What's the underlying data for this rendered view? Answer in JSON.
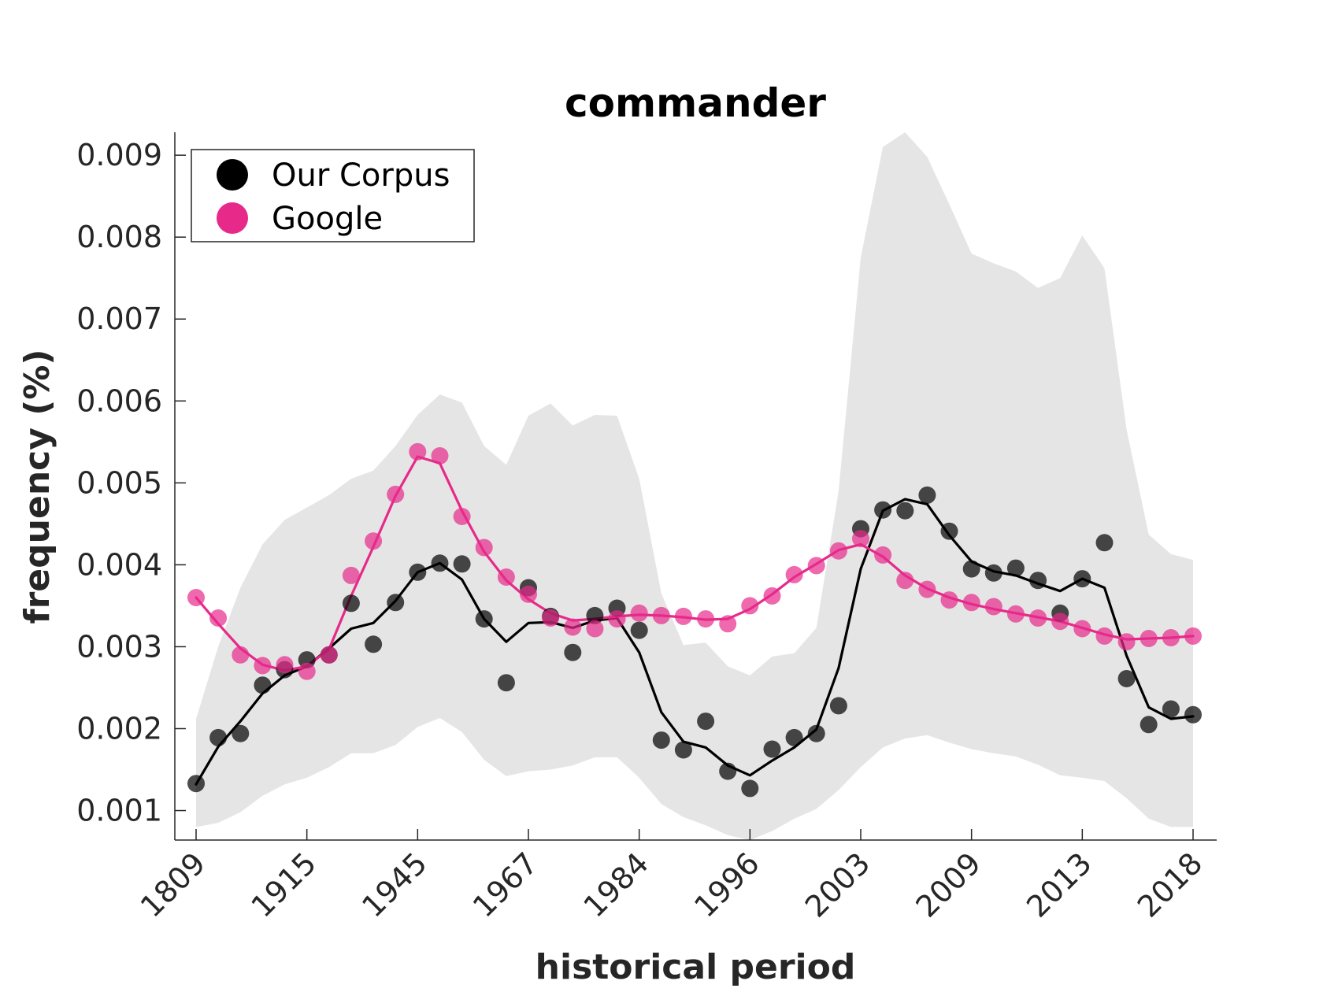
{
  "chart_data": {
    "type": "scatter",
    "title": "commander",
    "xlabel": "historical period",
    "ylabel": "frequency (%)",
    "ylim": [
      0.00064,
      0.00928
    ],
    "yticks": [
      0.001,
      0.002,
      0.003,
      0.004,
      0.005,
      0.006,
      0.007,
      0.008,
      0.009
    ],
    "ytick_labels": [
      "0.001",
      "0.002",
      "0.003",
      "0.004",
      "0.005",
      "0.006",
      "0.007",
      "0.008",
      "0.009"
    ],
    "xtick_labels": [
      "1809",
      "1915",
      "1945",
      "1967",
      "1984",
      "1996",
      "2003",
      "2009",
      "2013",
      "2018"
    ],
    "xtick_index": [
      0,
      5,
      10,
      15,
      20,
      25,
      30,
      35,
      40,
      45
    ],
    "n_periods": 46,
    "grid": false,
    "legend_position": "top-left",
    "series": [
      {
        "name": "Our Corpus",
        "color": "#000000",
        "points": [
          0.00133,
          0.00189,
          0.00194,
          0.00253,
          0.00272,
          0.00284,
          0.0029,
          0.00353,
          0.00303,
          0.00354,
          0.00391,
          0.00402,
          0.00401,
          0.00334,
          0.00256,
          0.00372,
          0.00337,
          0.00293,
          0.00338,
          0.00347,
          0.0032,
          0.00186,
          0.00174,
          0.00209,
          0.00148,
          0.00127,
          0.00175,
          0.00189,
          0.00194,
          0.00228,
          0.00444,
          0.00467,
          0.00466,
          0.00485,
          0.00441,
          0.00395,
          0.0039,
          0.00396,
          0.00381,
          0.00341,
          0.00383,
          0.00427,
          0.00261,
          0.00205,
          0.00224,
          0.00217
        ],
        "trend": [
          0.00132,
          0.00178,
          0.00209,
          0.00243,
          0.00265,
          0.00276,
          0.00298,
          0.00322,
          0.00329,
          0.00356,
          0.00391,
          0.00402,
          0.00382,
          0.00334,
          0.00306,
          0.00329,
          0.0033,
          0.00323,
          0.00332,
          0.00335,
          0.00293,
          0.0022,
          0.00184,
          0.00177,
          0.00155,
          0.00143,
          0.00161,
          0.00177,
          0.00199,
          0.00274,
          0.00395,
          0.00466,
          0.0048,
          0.00474,
          0.00436,
          0.00404,
          0.00392,
          0.00387,
          0.00377,
          0.00368,
          0.00383,
          0.00372,
          0.00289,
          0.00226,
          0.00212,
          0.00215
        ]
      },
      {
        "name": "Google",
        "color": "#e7298a",
        "points": [
          0.0036,
          0.00335,
          0.0029,
          0.00277,
          0.00278,
          0.0027,
          0.0029,
          0.00387,
          0.00429,
          0.00486,
          0.00538,
          0.00533,
          0.00459,
          0.00421,
          0.00385,
          0.00364,
          0.00335,
          0.00324,
          0.00322,
          0.00334,
          0.00341,
          0.00338,
          0.00337,
          0.00334,
          0.00328,
          0.0035,
          0.00362,
          0.00388,
          0.00399,
          0.00417,
          0.00432,
          0.00412,
          0.00381,
          0.0037,
          0.00357,
          0.00354,
          0.00349,
          0.0034,
          0.00335,
          0.00331,
          0.00322,
          0.00313,
          0.00306,
          0.0031,
          0.00311,
          0.00313
        ],
        "trend": [
          0.0036,
          0.00328,
          0.00298,
          0.00278,
          0.00271,
          0.00276,
          0.00297,
          0.00362,
          0.00422,
          0.00484,
          0.00532,
          0.00524,
          0.00466,
          0.00416,
          0.00381,
          0.00358,
          0.00341,
          0.00332,
          0.00334,
          0.00337,
          0.00339,
          0.00338,
          0.00336,
          0.00333,
          0.00334,
          0.00346,
          0.00364,
          0.00385,
          0.00401,
          0.00418,
          0.00425,
          0.0041,
          0.00387,
          0.00371,
          0.0036,
          0.00352,
          0.00346,
          0.00341,
          0.00336,
          0.00331,
          0.00323,
          0.00315,
          0.00309,
          0.0031,
          0.00311,
          0.00313
        ]
      }
    ],
    "band": {
      "color": "#e5e5e5",
      "upper": [
        0.00212,
        0.003,
        0.00372,
        0.00425,
        0.00455,
        0.0047,
        0.00485,
        0.00505,
        0.00515,
        0.00545,
        0.00583,
        0.00608,
        0.00598,
        0.00545,
        0.00522,
        0.00582,
        0.00597,
        0.0057,
        0.00583,
        0.00582,
        0.00505,
        0.00365,
        0.00302,
        0.00305,
        0.00276,
        0.00265,
        0.00288,
        0.00292,
        0.00323,
        0.0049,
        0.00775,
        0.0091,
        0.00928,
        0.00898,
        0.0084,
        0.0078,
        0.00768,
        0.00758,
        0.00738,
        0.0075,
        0.00802,
        0.00762,
        0.00565,
        0.00437,
        0.00413,
        0.00406
      ],
      "lower": [
        0.0008,
        0.00085,
        0.00098,
        0.00118,
        0.00132,
        0.0014,
        0.00153,
        0.0017,
        0.0017,
        0.0018,
        0.00202,
        0.00213,
        0.00196,
        0.00162,
        0.00142,
        0.00148,
        0.0015,
        0.00155,
        0.00165,
        0.00165,
        0.0014,
        0.00108,
        0.00092,
        0.00082,
        0.0007,
        0.00064,
        0.00075,
        0.0009,
        0.00102,
        0.00125,
        0.00153,
        0.00177,
        0.00188,
        0.00192,
        0.00183,
        0.00175,
        0.0017,
        0.00166,
        0.00156,
        0.00143,
        0.0014,
        0.00136,
        0.00115,
        0.0009,
        0.0008,
        0.0008
      ]
    }
  }
}
